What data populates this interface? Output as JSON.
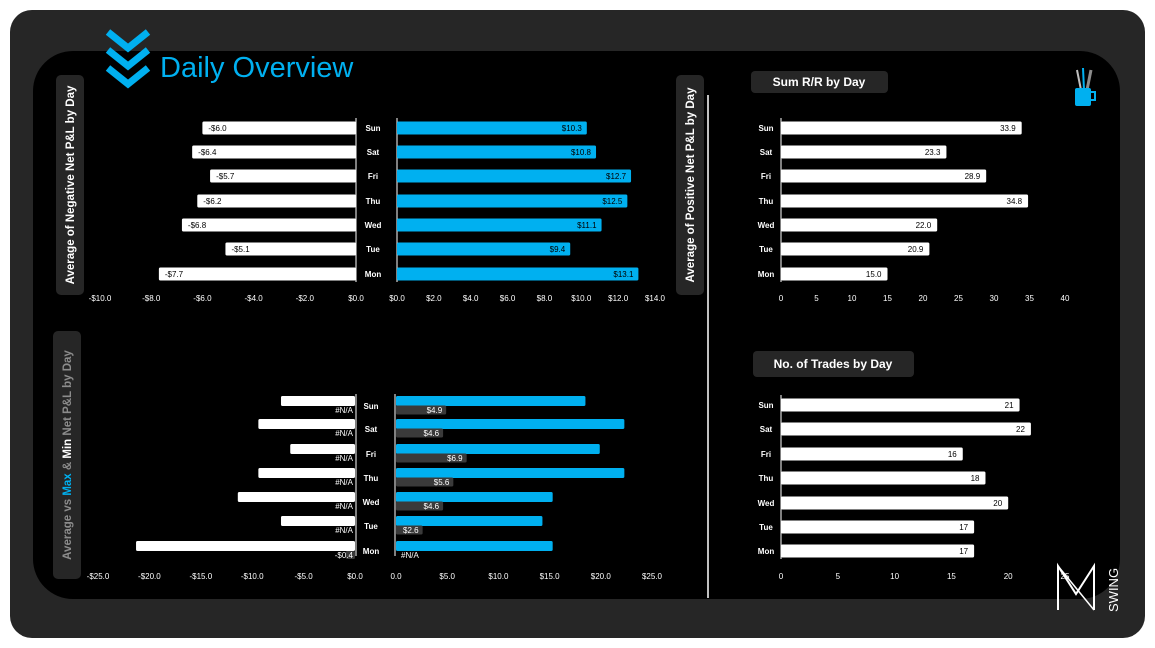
{
  "header": {
    "title": "Daily Overview",
    "accent": "#00B0F0",
    "icon": "chevron-down-stack-icon",
    "corner_icon": "pencil-cup-icon",
    "brand_icon": "swing-logo-icon",
    "brand_text": "SWING"
  },
  "colors": {
    "blue": "#00B0F0",
    "white": "#FFFFFF",
    "dark_bar": "#3A3A3A",
    "label_box": "#262626",
    "axis_text": "#FFFFFF"
  },
  "chart_data": [
    {
      "id": "negative",
      "type": "bar",
      "orientation": "horizontal",
      "title": "Average of Negative Net P&L by Day",
      "categories": [
        "Sun",
        "Sat",
        "Fri",
        "Thu",
        "Wed",
        "Tue",
        "Mon"
      ],
      "series": [
        {
          "values": [
            -6.0,
            -6.4,
            -5.7,
            -6.2,
            -6.8,
            -5.1,
            -7.7
          ]
        }
      ],
      "labels": [
        "-$6.0",
        "-$6.4",
        "-$5.7",
        "-$6.2",
        "-$6.8",
        "-$5.1",
        "-$7.7"
      ],
      "xlim": [
        -10,
        0
      ],
      "ticks": [
        "-$10.0",
        "-$8.0",
        "-$6.0",
        "-$4.0",
        "-$2.0",
        "$0.0"
      ]
    },
    {
      "id": "positive",
      "type": "bar",
      "orientation": "horizontal",
      "title": "Average of Positive Net P&L by Day",
      "categories": [
        "Sun",
        "Sat",
        "Fri",
        "Thu",
        "Wed",
        "Tue",
        "Mon"
      ],
      "series": [
        {
          "values": [
            10.3,
            10.8,
            12.7,
            12.5,
            11.1,
            9.4,
            13.1
          ]
        }
      ],
      "labels": [
        "$10.3",
        "$10.8",
        "$12.7",
        "$12.5",
        "$11.1",
        "$9.4",
        "$13.1"
      ],
      "xlim": [
        0,
        14
      ],
      "ticks": [
        "$0.0",
        "$2.0",
        "$4.0",
        "$6.0",
        "$8.0",
        "$10.0",
        "$12.0",
        "$14.0"
      ]
    },
    {
      "id": "sum_rr",
      "type": "bar",
      "orientation": "horizontal",
      "title": "Sum R/R by Day",
      "categories": [
        "Sun",
        "Sat",
        "Fri",
        "Thu",
        "Wed",
        "Tue",
        "Mon"
      ],
      "series": [
        {
          "values": [
            33.9,
            23.3,
            28.9,
            34.8,
            22.0,
            20.9,
            15.0
          ]
        }
      ],
      "labels": [
        "33.9",
        "23.3",
        "28.9",
        "34.8",
        "22.0",
        "20.9",
        "15.0"
      ],
      "xlim": [
        0,
        40
      ],
      "ticks": [
        "0",
        "5",
        "10",
        "15",
        "20",
        "25",
        "30",
        "35",
        "40"
      ]
    },
    {
      "id": "minmax_left",
      "type": "bar",
      "orientation": "horizontal",
      "title_parts": [
        "Average vs ",
        "Max",
        " & ",
        "Min",
        " Net P&L by Day"
      ],
      "categories": [
        "Sun",
        "Sat",
        "Fri",
        "Thu",
        "Wed",
        "Tue",
        "Mon"
      ],
      "series": [
        {
          "values": [
            -7.2,
            -9.4,
            -6.3,
            -9.4,
            -11.4,
            -7.2,
            -21.3
          ]
        },
        {
          "values": [
            null,
            null,
            null,
            null,
            null,
            null,
            -0.4
          ]
        }
      ],
      "labels": [
        "#N/A",
        "#N/A",
        "#N/A",
        "#N/A",
        "#N/A",
        "#N/A",
        "-$0.4"
      ],
      "xlim": [
        -25,
        0
      ],
      "ticks": [
        "-$25.0",
        "-$20.0",
        "-$15.0",
        "-$10.0",
        "-$5.0",
        "$0.0"
      ]
    },
    {
      "id": "minmax_right",
      "type": "bar",
      "orientation": "horizontal",
      "categories": [
        "Sun",
        "Sat",
        "Fri",
        "Thu",
        "Wed",
        "Tue",
        "Mon"
      ],
      "series": [
        {
          "values": [
            18.5,
            22.3,
            19.9,
            22.3,
            15.3,
            14.3,
            15.3
          ]
        },
        {
          "values": [
            4.9,
            4.6,
            6.9,
            5.6,
            4.6,
            2.6,
            null
          ]
        }
      ],
      "labels": [
        "$4.9",
        "$4.6",
        "$6.9",
        "$5.6",
        "$4.6",
        "$2.6",
        "#N/A"
      ],
      "xlim": [
        0,
        25
      ],
      "ticks": [
        "0.0",
        "$5.0",
        "$10.0",
        "$15.0",
        "$20.0",
        "$25.0"
      ]
    },
    {
      "id": "trades",
      "type": "bar",
      "orientation": "horizontal",
      "title": "No. of Trades by Day",
      "categories": [
        "Sun",
        "Sat",
        "Fri",
        "Thu",
        "Wed",
        "Tue",
        "Mon"
      ],
      "series": [
        {
          "values": [
            21,
            22,
            16,
            18,
            20,
            17,
            17
          ]
        }
      ],
      "labels": [
        "21",
        "22",
        "16",
        "18",
        "20",
        "17",
        "17"
      ],
      "xlim": [
        0,
        25
      ],
      "ticks": [
        "0",
        "5",
        "10",
        "15",
        "20",
        "25"
      ]
    }
  ]
}
